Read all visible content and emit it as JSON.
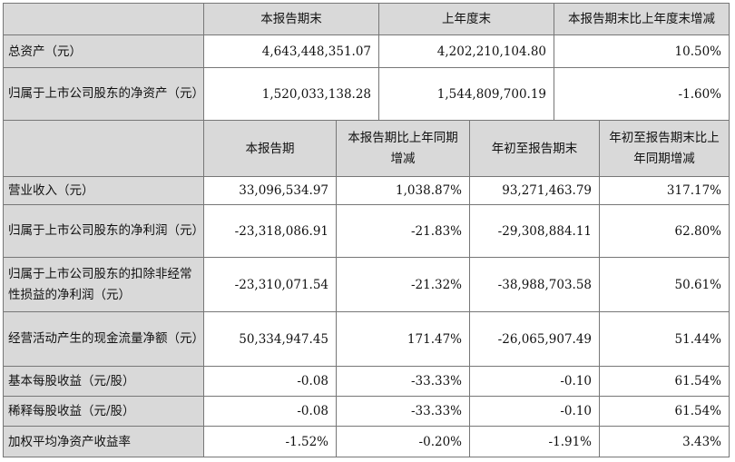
{
  "section1": {
    "headers": [
      "本报告期末",
      "上年度末",
      "本报告期末比上年度末增减"
    ],
    "rows": [
      {
        "label": "总资产（元）",
        "values": [
          "4,643,448,351.07",
          "4,202,210,104.80",
          "10.50%"
        ]
      },
      {
        "label": "归属于上市公司股东的净资产（元）",
        "values": [
          "1,520,033,138.28",
          "1,544,809,700.19",
          "-1.60%"
        ]
      }
    ]
  },
  "section2": {
    "headers": [
      "本报告期",
      "本报告期比上年同期增减",
      "年初至报告期末",
      "年初至报告期末比上年同期增减"
    ],
    "rows": [
      {
        "label": "营业收入（元）",
        "values": [
          "33,096,534.97",
          "1,038.87%",
          "93,271,463.79",
          "317.17%"
        ]
      },
      {
        "label": "归属于上市公司股东的净利润（元）",
        "values": [
          "-23,318,086.91",
          "-21.83%",
          "-29,308,884.11",
          "62.80%"
        ]
      },
      {
        "label": "归属于上市公司股东的扣除非经常性损益的净利润（元）",
        "values": [
          "-23,310,071.54",
          "-21.32%",
          "-38,988,703.58",
          "50.61%"
        ]
      },
      {
        "label": "经营活动产生的现金流量净额（元）",
        "values": [
          "50,334,947.45",
          "171.47%",
          "-26,065,907.49",
          "51.44%"
        ]
      },
      {
        "label": "基本每股收益（元/股）",
        "values": [
          "-0.08",
          "-33.33%",
          "-0.10",
          "61.54%"
        ]
      },
      {
        "label": "稀释每股收益（元/股）",
        "values": [
          "-0.08",
          "-33.33%",
          "-0.10",
          "61.54%"
        ]
      },
      {
        "label": "加权平均净资产收益率",
        "values": [
          "-1.52%",
          "-0.20%",
          "-1.91%",
          "3.43%"
        ]
      }
    ]
  }
}
